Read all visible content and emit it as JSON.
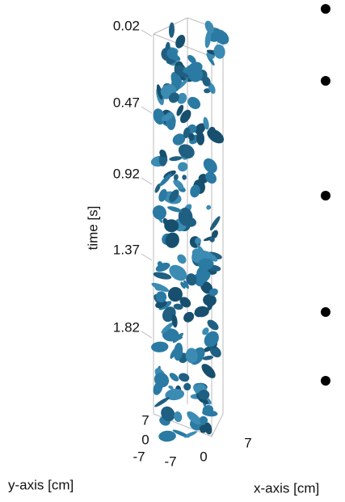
{
  "figure": {
    "axis_labels": {
      "z": "time [s]",
      "y": "y-axis [cm]",
      "x": "x-axis [cm]"
    },
    "z_ticks": [
      "0.02",
      "0.47",
      "0.92",
      "1.37",
      "1.82"
    ],
    "y_ticks": [
      "7",
      "0",
      "-7"
    ],
    "x_ticks": [
      "-7",
      "0",
      "7"
    ]
  }
}
